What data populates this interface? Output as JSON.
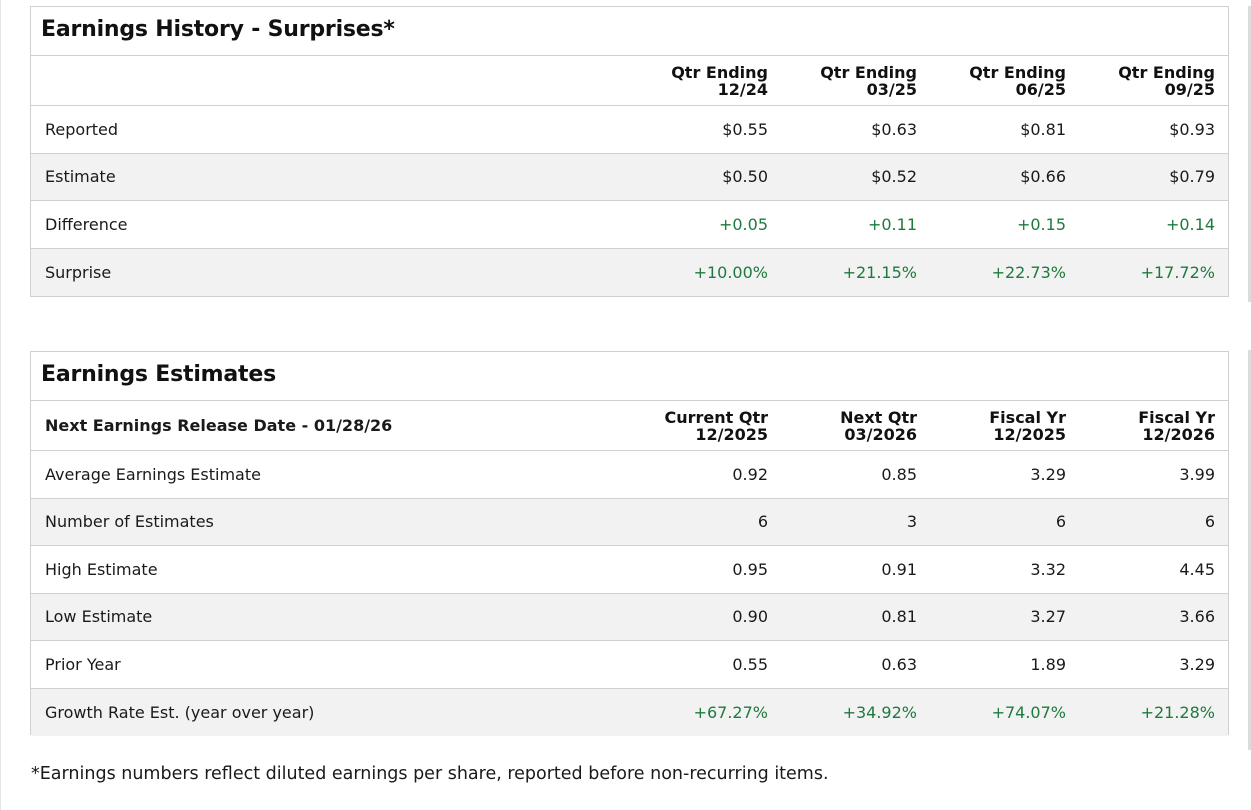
{
  "history": {
    "title": "Earnings History - Surprises*",
    "columns": [
      {
        "line1": "Qtr Ending",
        "line2": "12/24"
      },
      {
        "line1": "Qtr Ending",
        "line2": "03/25"
      },
      {
        "line1": "Qtr Ending",
        "line2": "06/25"
      },
      {
        "line1": "Qtr Ending",
        "line2": "09/25"
      }
    ],
    "rows": [
      {
        "label": "Reported",
        "values": [
          "$0.55",
          "$0.63",
          "$0.81",
          "$0.93"
        ]
      },
      {
        "label": "Estimate",
        "values": [
          "$0.50",
          "$0.52",
          "$0.66",
          "$0.79"
        ]
      },
      {
        "label": "Difference",
        "values": [
          "+0.05",
          "+0.11",
          "+0.15",
          "+0.14"
        ]
      },
      {
        "label": "Surprise",
        "values": [
          "+10.00%",
          "+21.15%",
          "+22.73%",
          "+17.72%"
        ]
      }
    ]
  },
  "estimates": {
    "title": "Earnings Estimates",
    "release_label": "Next Earnings Release Date - 01/28/26",
    "columns": [
      {
        "line1": "Current Qtr",
        "line2": "12/2025"
      },
      {
        "line1": "Next Qtr",
        "line2": "03/2026"
      },
      {
        "line1": "Fiscal Yr",
        "line2": "12/2025"
      },
      {
        "line1": "Fiscal Yr",
        "line2": "12/2026"
      }
    ],
    "rows": [
      {
        "label": "Average Earnings Estimate",
        "values": [
          "0.92",
          "0.85",
          "3.29",
          "3.99"
        ]
      },
      {
        "label": "Number of Estimates",
        "values": [
          "6",
          "3",
          "6",
          "6"
        ]
      },
      {
        "label": "High Estimate",
        "values": [
          "0.95",
          "0.91",
          "3.32",
          "4.45"
        ]
      },
      {
        "label": "Low Estimate",
        "values": [
          "0.90",
          "0.81",
          "3.27",
          "3.66"
        ]
      },
      {
        "label": "Prior Year",
        "values": [
          "0.55",
          "0.63",
          "1.89",
          "3.29"
        ]
      },
      {
        "label": "Growth Rate Est. (year over year)",
        "values": [
          "+67.27%",
          "+34.92%",
          "+74.07%",
          "+21.28%"
        ]
      }
    ]
  },
  "footnote": "*Earnings numbers reflect diluted earnings per share, reported before non-recurring items.",
  "colors": {
    "positive": "#1e7a3c",
    "border": "#d0d0d0",
    "alt_row": "#f2f2f2"
  }
}
